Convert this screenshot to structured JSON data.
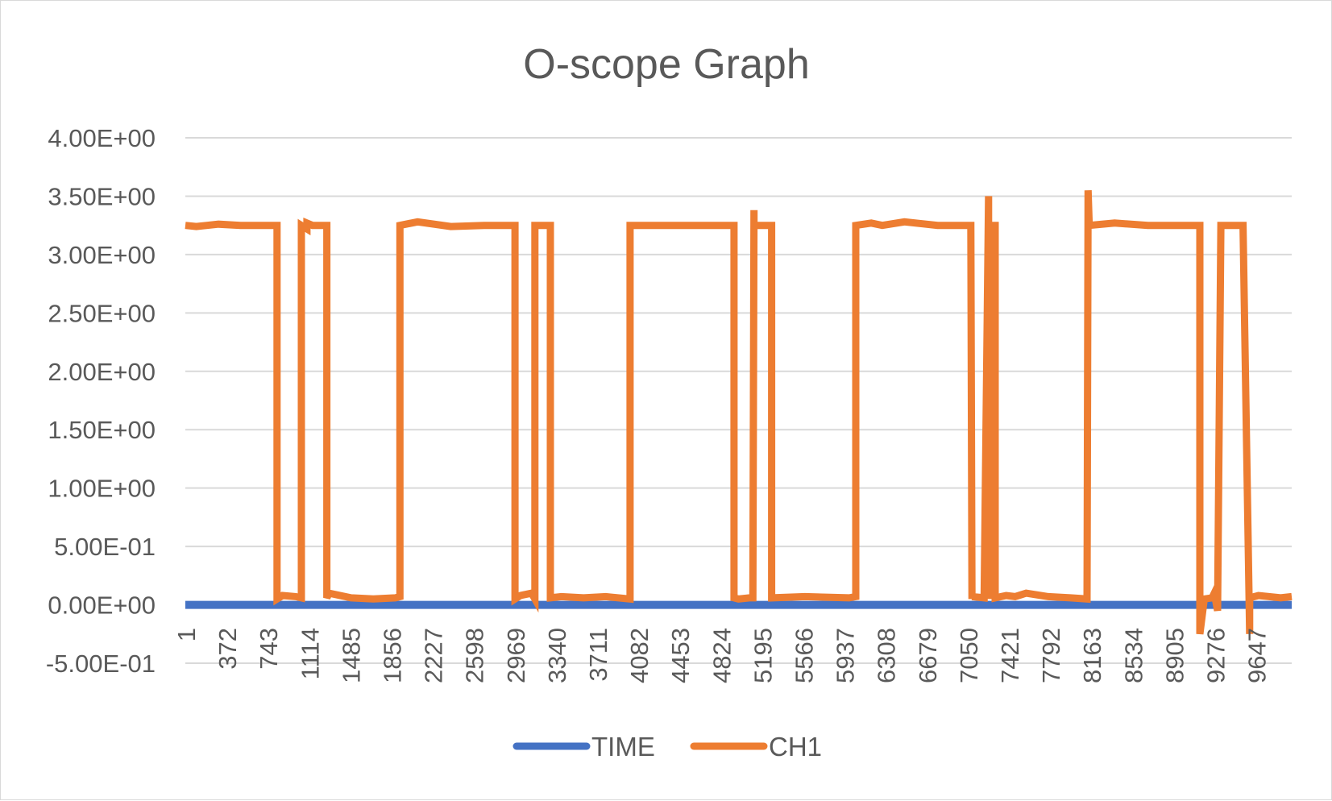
{
  "chart_data": {
    "type": "line",
    "title": "O-scope Graph",
    "xlabel": "",
    "ylabel": "",
    "ylim": [
      -0.5,
      4.0
    ],
    "y_ticks": [
      "4.00E+00",
      "3.50E+00",
      "3.00E+00",
      "2.50E+00",
      "2.00E+00",
      "1.50E+00",
      "1.00E+00",
      "5.00E-01",
      "0.00E+00",
      "-5.00E-01"
    ],
    "y_tick_values": [
      4.0,
      3.5,
      3.0,
      2.5,
      2.0,
      1.5,
      1.0,
      0.5,
      0.0,
      -0.5
    ],
    "x_range": [
      1,
      10000
    ],
    "x_ticks": [
      "1",
      "372",
      "743",
      "1114",
      "1485",
      "1856",
      "2227",
      "2598",
      "2969",
      "3340",
      "3711",
      "4082",
      "4453",
      "4824",
      "5195",
      "5566",
      "5937",
      "6308",
      "6679",
      "7050",
      "7421",
      "7792",
      "8163",
      "8534",
      "8905",
      "9276",
      "9647"
    ],
    "grid": "horizontal",
    "legend_position": "bottom",
    "series": [
      {
        "name": "TIME",
        "color": "#4472c4",
        "x": [
          1,
          10000
        ],
        "y": [
          0.0,
          0.0
        ]
      },
      {
        "name": "CH1",
        "color": "#ed7d31",
        "x": [
          1,
          100,
          300,
          500,
          700,
          830,
          830,
          880,
          1000,
          1050,
          1050,
          1100,
          1100,
          1150,
          1280,
          1280,
          1300,
          1500,
          1700,
          1900,
          1940,
          1940,
          2100,
          2400,
          2700,
          2980,
          2980,
          3030,
          3130,
          3160,
          3160,
          3270,
          3300,
          3300,
          3400,
          3600,
          3800,
          4020,
          4020,
          4300,
          4600,
          4960,
          4960,
          5000,
          5100,
          5130,
          5140,
          5140,
          5220,
          5300,
          5300,
          5600,
          6000,
          6060,
          6060,
          6200,
          6300,
          6500,
          6800,
          7100,
          7110,
          7110,
          7220,
          7260,
          7260,
          7310,
          7320,
          7320,
          7420,
          7500,
          7600,
          7800,
          8000,
          8150,
          8160,
          8170,
          8170,
          8400,
          8700,
          9000,
          9140,
          9170,
          9170,
          9210,
          9280,
          9300,
          9330,
          9360,
          9360,
          9560,
          9560,
          9620,
          9620,
          9700,
          9900,
          10000
        ],
        "y": [
          3.25,
          3.24,
          3.26,
          3.25,
          3.25,
          3.25,
          0.05,
          0.08,
          0.07,
          0.06,
          3.25,
          3.22,
          3.27,
          3.25,
          3.25,
          0.06,
          0.1,
          0.06,
          0.05,
          0.06,
          0.07,
          3.25,
          3.28,
          3.24,
          3.25,
          3.25,
          0.05,
          0.08,
          0.1,
          0.05,
          3.25,
          3.25,
          3.25,
          0.06,
          0.07,
          0.06,
          0.07,
          0.05,
          3.25,
          3.25,
          3.25,
          3.25,
          0.06,
          0.05,
          0.06,
          0.06,
          3.38,
          3.25,
          3.25,
          3.25,
          0.06,
          0.07,
          0.06,
          0.07,
          3.25,
          3.27,
          3.25,
          3.28,
          3.25,
          3.25,
          0.05,
          0.07,
          0.06,
          3.5,
          0.05,
          3.25,
          3.25,
          0.06,
          0.08,
          0.07,
          0.1,
          0.07,
          0.06,
          0.05,
          3.55,
          3.25,
          3.25,
          3.27,
          3.25,
          3.25,
          3.25,
          3.25,
          -0.25,
          0.05,
          0.06,
          0.1,
          -0.05,
          3.25,
          3.25,
          3.25,
          3.25,
          -0.25,
          0.06,
          0.08,
          0.06,
          0.07
        ]
      }
    ]
  }
}
